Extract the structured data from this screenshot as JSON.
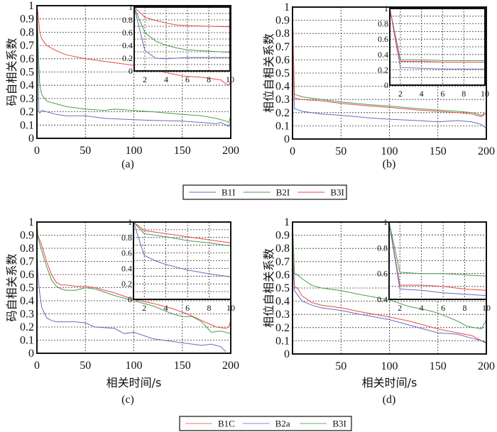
{
  "colors": {
    "B1I": "#6a6abf",
    "B2I": "#4f9a4f",
    "B3I": "#e84848",
    "B1C": "#e84848",
    "B2a": "#6a6abf",
    "B3I_d": "#4f9a4f"
  },
  "legend_top": [
    {
      "label": "B1I",
      "color": "#6a6abf"
    },
    {
      "label": "B2I",
      "color": "#4f9a4f"
    },
    {
      "label": "B3I",
      "color": "#e84848"
    }
  ],
  "legend_bottom": [
    {
      "label": "B1C",
      "color": "#e87878"
    },
    {
      "label": "B2a",
      "color": "#8a8ad0"
    },
    {
      "label": "B3I",
      "color": "#6aa86a"
    }
  ],
  "chart_data": [
    {
      "id": "a",
      "type": "line",
      "caption": "(a)",
      "ylabel": "码自相关系数",
      "xlabel": "",
      "xlim": [
        0,
        200
      ],
      "ylim": [
        0,
        1
      ],
      "xticks": [
        "0",
        "50",
        "100",
        "150",
        "200"
      ],
      "yticks": [
        "0",
        "0.1",
        "0.2",
        "0.3",
        "0.4",
        "0.5",
        "0.6",
        "0.7",
        "0.8",
        "0.9",
        "1"
      ],
      "grid": true,
      "series": [
        {
          "name": "B1I",
          "color": "#6a6abf",
          "x": [
            0,
            1,
            2,
            3,
            5,
            10,
            20,
            30,
            50,
            70,
            100,
            120,
            150,
            170,
            185,
            190,
            195,
            198,
            200
          ],
          "y": [
            1,
            0.7,
            0.2,
            0.19,
            0.21,
            0.2,
            0.18,
            0.17,
            0.17,
            0.15,
            0.14,
            0.135,
            0.13,
            0.12,
            0.11,
            0.12,
            0.1,
            0.09,
            0.12
          ]
        },
        {
          "name": "B2I",
          "color": "#4f9a4f",
          "x": [
            0,
            1,
            2,
            3,
            5,
            10,
            20,
            30,
            50,
            70,
            80,
            100,
            120,
            150,
            170,
            185,
            195,
            198,
            200
          ],
          "y": [
            1,
            0.8,
            0.55,
            0.4,
            0.33,
            0.28,
            0.26,
            0.24,
            0.22,
            0.21,
            0.22,
            0.21,
            0.2,
            0.18,
            0.17,
            0.15,
            0.13,
            0.12,
            0.17
          ]
        },
        {
          "name": "B3I",
          "color": "#e84848",
          "x": [
            0,
            1,
            3,
            5,
            10,
            20,
            30,
            50,
            70,
            100,
            120,
            130,
            150,
            170,
            180,
            190,
            195,
            198,
            200
          ],
          "y": [
            1,
            0.95,
            0.8,
            0.75,
            0.7,
            0.66,
            0.63,
            0.6,
            0.58,
            0.55,
            0.52,
            0.5,
            0.47,
            0.46,
            0.45,
            0.44,
            0.41,
            0.4,
            0.43
          ]
        }
      ],
      "inset": {
        "xlim": [
          1,
          10
        ],
        "ylim": [
          0,
          1
        ],
        "xticks": [
          "2",
          "4",
          "6",
          "8",
          "10"
        ],
        "yticks": [
          "0",
          "0.2",
          "0.4",
          "0.6",
          "0.8",
          "1"
        ],
        "series": [
          {
            "name": "B1I",
            "color": "#6a6abf",
            "x": [
              1,
              2,
              3,
              4,
              5,
              6,
              8,
              10
            ],
            "y": [
              1,
              0.32,
              0.2,
              0.19,
              0.2,
              0.21,
              0.21,
              0.21
            ]
          },
          {
            "name": "B2I",
            "color": "#4f9a4f",
            "x": [
              1,
              2,
              3,
              4,
              5,
              6,
              8,
              10
            ],
            "y": [
              1,
              0.6,
              0.47,
              0.4,
              0.36,
              0.33,
              0.31,
              0.29
            ]
          },
          {
            "name": "B3I",
            "color": "#e84848",
            "x": [
              1,
              2,
              3,
              4,
              5,
              6,
              8,
              10
            ],
            "y": [
              1,
              0.84,
              0.79,
              0.75,
              0.72,
              0.71,
              0.7,
              0.69
            ]
          }
        ]
      }
    },
    {
      "id": "b",
      "type": "line",
      "caption": "(b)",
      "ylabel": "相位自相关系数",
      "xlabel": "",
      "xlim": [
        0,
        200
      ],
      "ylim": [
        0,
        1
      ],
      "xticks": [
        "0",
        "50",
        "100",
        "150",
        "200"
      ],
      "yticks": [
        "0",
        "0.1",
        "0.2",
        "0.3",
        "0.4",
        "0.5",
        "0.6",
        "0.7",
        "0.8",
        "0.9",
        "1"
      ],
      "grid": true,
      "series": [
        {
          "name": "B1I",
          "color": "#6a6abf",
          "x": [
            0,
            1,
            2,
            10,
            30,
            50,
            80,
            100,
            130,
            150,
            170,
            185,
            195,
            200
          ],
          "y": [
            0.72,
            0.5,
            0.23,
            0.21,
            0.19,
            0.18,
            0.16,
            0.15,
            0.14,
            0.13,
            0.14,
            0.13,
            0.11,
            0.08
          ]
        },
        {
          "name": "B2I",
          "color": "#4f9a4f",
          "x": [
            0,
            1,
            2,
            10,
            30,
            50,
            80,
            100,
            130,
            150,
            170,
            185,
            195,
            200
          ],
          "y": [
            1,
            0.6,
            0.34,
            0.32,
            0.3,
            0.28,
            0.26,
            0.25,
            0.23,
            0.22,
            0.21,
            0.2,
            0.18,
            0.2
          ]
        },
        {
          "name": "B3I",
          "color": "#e84848",
          "x": [
            0,
            1,
            2,
            10,
            30,
            50,
            80,
            100,
            130,
            150,
            170,
            185,
            195,
            200
          ],
          "y": [
            1,
            0.6,
            0.31,
            0.3,
            0.29,
            0.27,
            0.25,
            0.24,
            0.22,
            0.21,
            0.2,
            0.19,
            0.17,
            0.2
          ]
        }
      ],
      "inset": {
        "xlim": [
          1,
          10
        ],
        "ylim": [
          0,
          1
        ],
        "xticks": [
          "2",
          "4",
          "6",
          "8",
          "10"
        ],
        "yticks": [
          "0",
          "0.2",
          "0.4",
          "0.6",
          "0.8",
          "1"
        ],
        "series": [
          {
            "name": "B1I",
            "color": "#6a6abf",
            "x": [
              1,
              2,
              4,
              6,
              8,
              10
            ],
            "y": [
              1,
              0.23,
              0.22,
              0.21,
              0.21,
              0.21
            ]
          },
          {
            "name": "B2I",
            "color": "#4f9a4f",
            "x": [
              1,
              2,
              4,
              6,
              8,
              10
            ],
            "y": [
              1,
              0.33,
              0.33,
              0.32,
              0.32,
              0.32
            ]
          },
          {
            "name": "B3I",
            "color": "#e84848",
            "x": [
              1,
              2,
              4,
              6,
              8,
              10
            ],
            "y": [
              1,
              0.31,
              0.31,
              0.3,
              0.3,
              0.3
            ]
          }
        ]
      }
    },
    {
      "id": "c",
      "type": "line",
      "caption": "(c)",
      "ylabel": "码自相关系数",
      "xlabel": "相关时间/s",
      "xlim": [
        0,
        200
      ],
      "ylim": [
        0,
        1
      ],
      "xticks": [
        "0",
        "50",
        "100",
        "150",
        "200"
      ],
      "yticks": [
        "0",
        "0.1",
        "0.2",
        "0.3",
        "0.4",
        "0.5",
        "0.6",
        "0.7",
        "0.8",
        "0.9",
        "1"
      ],
      "grid": true,
      "series": [
        {
          "name": "B1C",
          "color": "#e84848",
          "x": [
            0,
            1,
            5,
            10,
            15,
            20,
            25,
            30,
            40,
            50,
            60,
            80,
            100,
            120,
            140,
            155,
            170,
            185,
            195,
            198,
            200
          ],
          "y": [
            1,
            0.9,
            0.82,
            0.7,
            0.6,
            0.54,
            0.52,
            0.52,
            0.51,
            0.51,
            0.5,
            0.46,
            0.41,
            0.38,
            0.34,
            0.3,
            0.25,
            0.2,
            0.19,
            0.2,
            0.25
          ]
        },
        {
          "name": "B2a",
          "color": "#6a6abf",
          "x": [
            0,
            1,
            3,
            5,
            10,
            15,
            20,
            30,
            40,
            50,
            60,
            80,
            90,
            100,
            120,
            150,
            170,
            180,
            190,
            195
          ],
          "y": [
            0.8,
            0.6,
            0.45,
            0.35,
            0.27,
            0.25,
            0.24,
            0.24,
            0.24,
            0.23,
            0.2,
            0.19,
            0.15,
            0.16,
            0.11,
            0.08,
            0.06,
            0.07,
            0.05,
            0.01
          ]
        },
        {
          "name": "B3I",
          "color": "#4f9a4f",
          "x": [
            0,
            1,
            5,
            10,
            15,
            20,
            25,
            30,
            40,
            50,
            60,
            80,
            100,
            120,
            140,
            150,
            160,
            170,
            180,
            190,
            200
          ],
          "y": [
            1,
            0.88,
            0.78,
            0.66,
            0.56,
            0.51,
            0.49,
            0.48,
            0.48,
            0.5,
            0.49,
            0.44,
            0.4,
            0.36,
            0.3,
            0.28,
            0.28,
            0.24,
            0.16,
            0.17,
            0.15
          ]
        }
      ],
      "inset": {
        "xlim": [
          1,
          10
        ],
        "ylim": [
          0,
          1
        ],
        "xticks": [
          "2",
          "4",
          "6",
          "8",
          "10"
        ],
        "yticks": [
          "0",
          "0.2",
          "0.4",
          "0.6",
          "0.8",
          "1"
        ],
        "series": [
          {
            "name": "B1C",
            "color": "#e84848",
            "x": [
              1,
              2,
              4,
              6,
              8,
              10
            ],
            "y": [
              1,
              0.89,
              0.85,
              0.81,
              0.77,
              0.73
            ]
          },
          {
            "name": "B2a",
            "color": "#6a6abf",
            "x": [
              1,
              2,
              3,
              4,
              6,
              8,
              10
            ],
            "y": [
              1,
              0.57,
              0.5,
              0.45,
              0.38,
              0.33,
              0.29
            ]
          },
          {
            "name": "B3I",
            "color": "#4f9a4f",
            "x": [
              1,
              2,
              4,
              6,
              8,
              10
            ],
            "y": [
              1,
              0.85,
              0.81,
              0.76,
              0.73,
              0.69
            ]
          }
        ]
      }
    },
    {
      "id": "d",
      "type": "line",
      "caption": "(d)",
      "ylabel": "相位自相关系数",
      "xlabel": "相关时间/s",
      "xlim": [
        0,
        200
      ],
      "ylim": [
        0,
        1
      ],
      "xticks": [
        "50",
        "100",
        "150",
        "200"
      ],
      "yticks": [
        "0",
        "0.1",
        "0.2",
        "0.3",
        "0.4",
        "0.5",
        "0.6",
        "0.7",
        "0.8",
        "0.9",
        "1"
      ],
      "grid": true,
      "series": [
        {
          "name": "B1C",
          "color": "#e84848",
          "x": [
            0,
            1,
            2,
            5,
            10,
            20,
            30,
            50,
            70,
            100,
            120,
            150,
            170,
            185,
            195,
            200
          ],
          "y": [
            1,
            0.7,
            0.51,
            0.5,
            0.44,
            0.39,
            0.37,
            0.35,
            0.32,
            0.28,
            0.25,
            0.19,
            0.16,
            0.14,
            0.1,
            0.09
          ]
        },
        {
          "name": "B2a",
          "color": "#6a6abf",
          "x": [
            0,
            1,
            2,
            5,
            10,
            20,
            30,
            50,
            70,
            100,
            120,
            150,
            170,
            185,
            195,
            200
          ],
          "y": [
            0.8,
            0.6,
            0.48,
            0.45,
            0.4,
            0.37,
            0.35,
            0.33,
            0.3,
            0.26,
            0.22,
            0.16,
            0.15,
            0.12,
            0.1,
            0.08
          ]
        },
        {
          "name": "B3I",
          "color": "#4f9a4f",
          "x": [
            0,
            1,
            2,
            5,
            10,
            20,
            30,
            50,
            70,
            100,
            120,
            140,
            150,
            160,
            170,
            180,
            195,
            200
          ],
          "y": [
            1,
            0.8,
            0.61,
            0.6,
            0.57,
            0.52,
            0.5,
            0.48,
            0.45,
            0.41,
            0.36,
            0.33,
            0.31,
            0.28,
            0.25,
            0.21,
            0.19,
            0.26
          ]
        }
      ],
      "inset": {
        "xlim": [
          1,
          10
        ],
        "ylim": [
          0.4,
          1
        ],
        "xticks": [
          "2",
          "4",
          "6",
          "8",
          "10"
        ],
        "yticks": [
          "0.4",
          "0.6",
          "0.8",
          "1"
        ],
        "series": [
          {
            "name": "B1C",
            "color": "#e84848",
            "x": [
              1,
              2,
              4,
              6,
              8,
              10
            ],
            "y": [
              1,
              0.51,
              0.51,
              0.5,
              0.48,
              0.47
            ]
          },
          {
            "name": "B2a",
            "color": "#6a6abf",
            "x": [
              1,
              2,
              4,
              6,
              8,
              10
            ],
            "y": [
              1,
              0.48,
              0.47,
              0.45,
              0.44,
              0.43
            ]
          },
          {
            "name": "B3I",
            "color": "#4f9a4f",
            "x": [
              1,
              2,
              4,
              6,
              8,
              10
            ],
            "y": [
              1,
              0.61,
              0.6,
              0.6,
              0.59,
              0.58
            ]
          }
        ]
      }
    }
  ]
}
